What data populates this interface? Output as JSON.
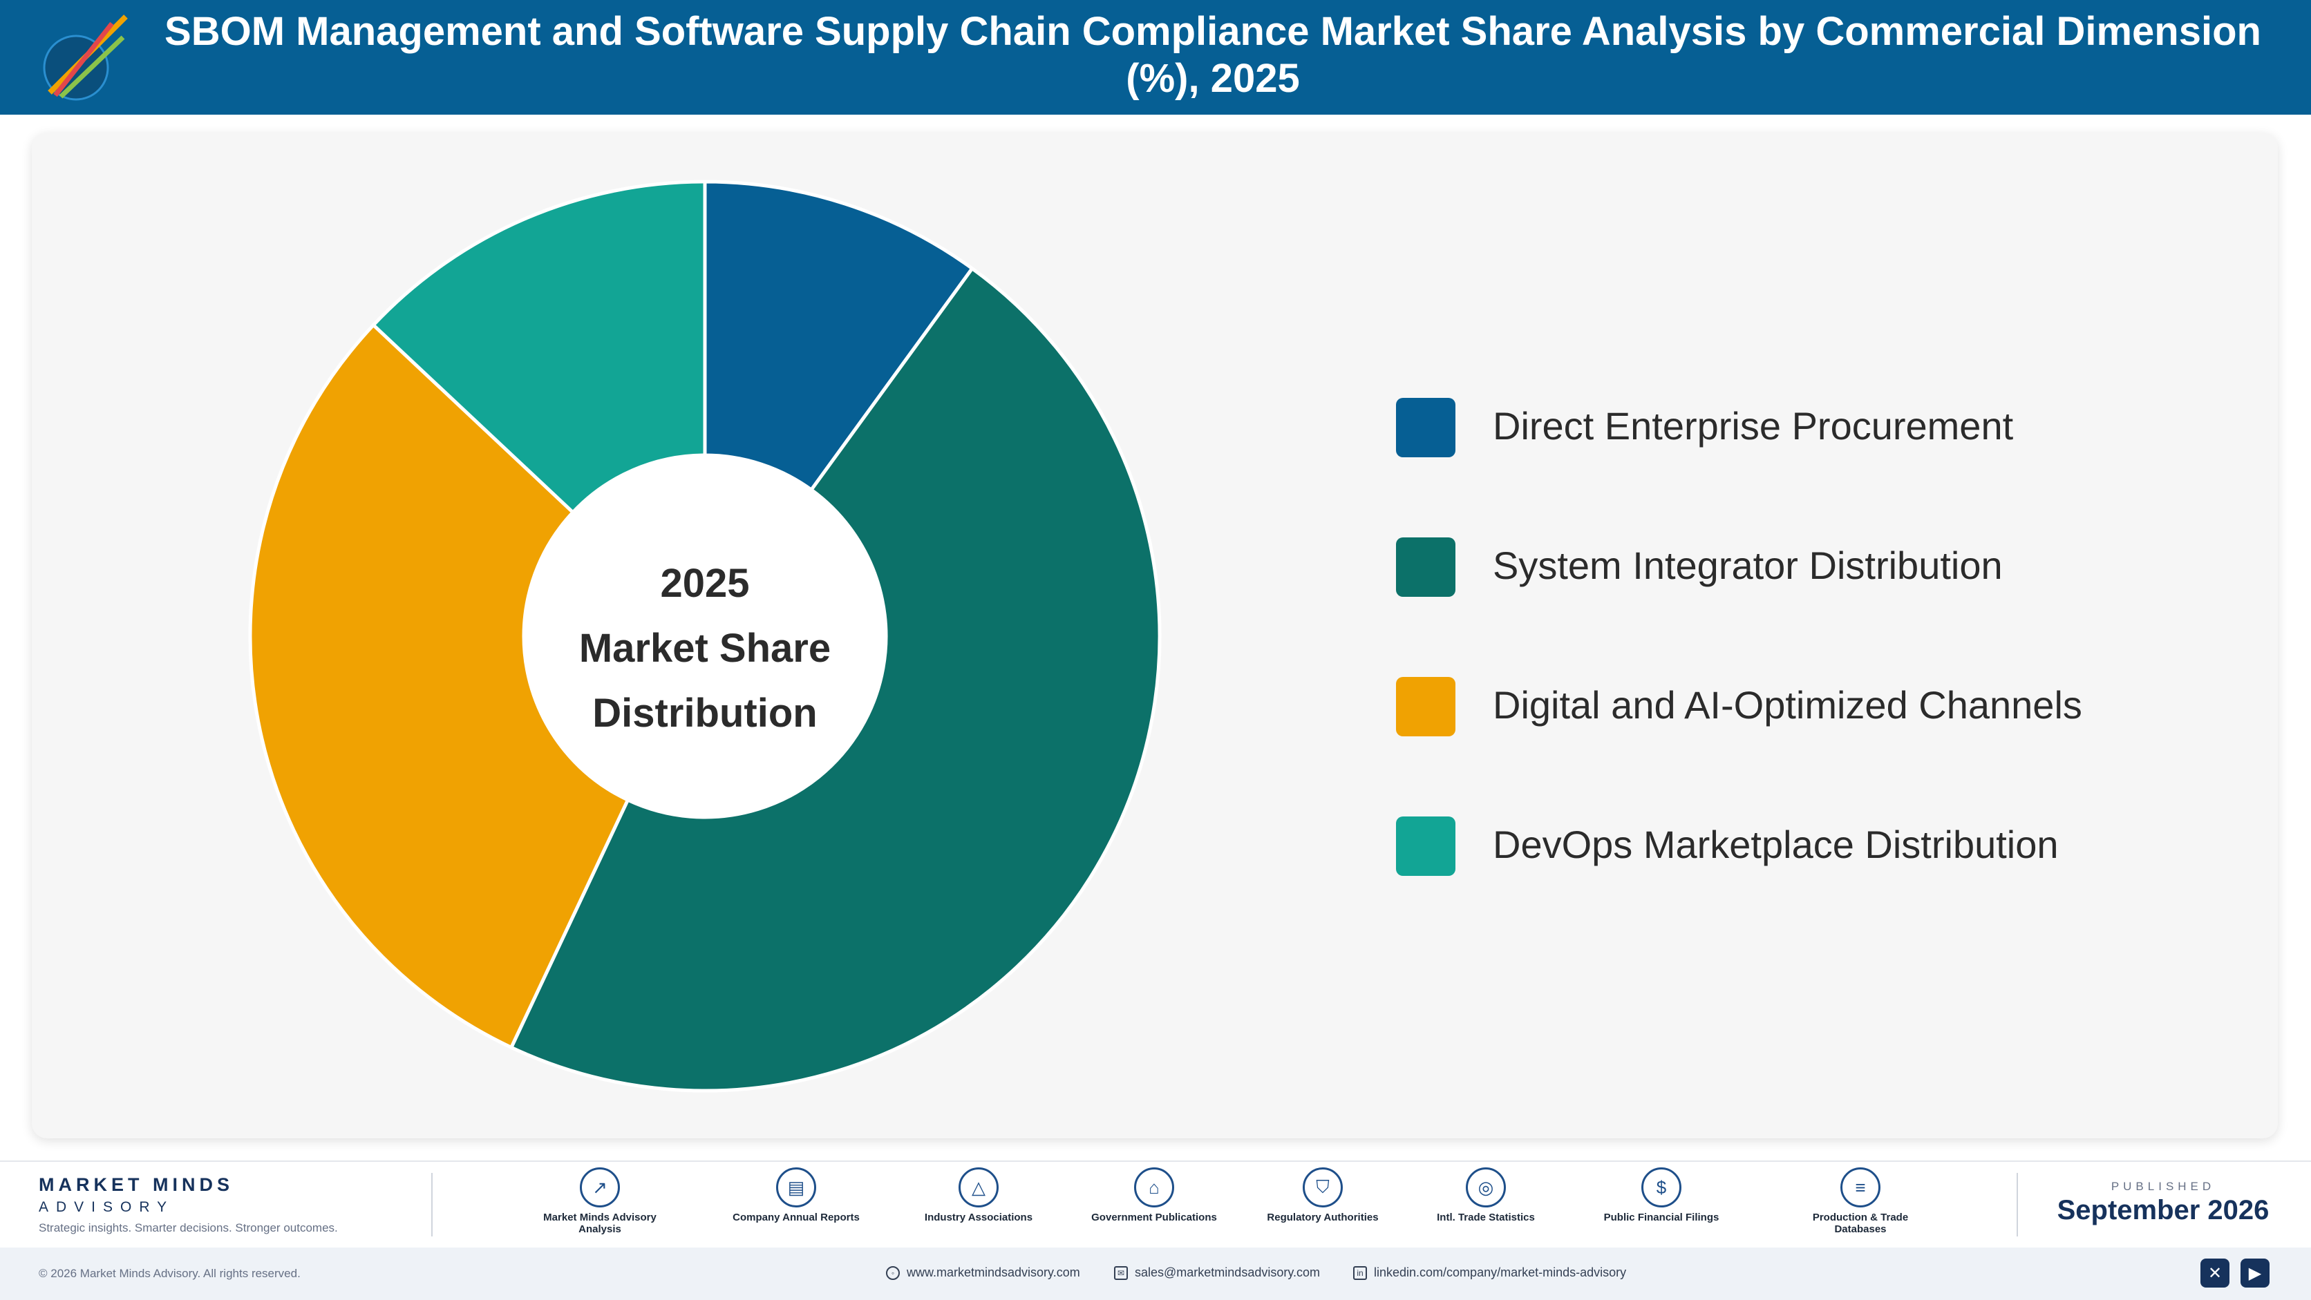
{
  "header": {
    "title": "SBOM Management and Software Supply Chain Compliance Market Share Analysis by Commercial Dimension (%), 2025",
    "logo_icon": "chart-logo-icon"
  },
  "chart_data": {
    "type": "pie",
    "title": "SBOM Management and Software Supply Chain Compliance Market Share Analysis by Commercial Dimension (%), 2025",
    "center_label": [
      "2025",
      "Market Share",
      "Distribution"
    ],
    "categories": [
      "Direct Enterprise Procurement",
      "System Integrator Distribution",
      "Digital and AI-Optimized Channels",
      "DevOps Marketplace Distribution"
    ],
    "values": [
      10,
      47,
      30,
      13
    ],
    "colors": [
      "#065f94",
      "#0c7169",
      "#f0a202",
      "#12a595"
    ],
    "legend_position": "right"
  },
  "footer": {
    "brand": "MARKET MINDS",
    "brand_sub": "ADVISORY",
    "tagline": "Strategic insights. Smarter decisions. Stronger outcomes.",
    "sources": [
      {
        "label": "Market Minds Advisory Analysis",
        "icon": "trend-icon"
      },
      {
        "label": "Company Annual Reports",
        "icon": "document-icon"
      },
      {
        "label": "Industry Associations",
        "icon": "network-icon"
      },
      {
        "label": "Government Publications",
        "icon": "government-icon"
      },
      {
        "label": "Regulatory Authorities",
        "icon": "shield-icon"
      },
      {
        "label": "Intl. Trade Statistics",
        "icon": "globe-icon"
      },
      {
        "label": "Public Financial Filings",
        "icon": "dollar-icon"
      },
      {
        "label": "Production & Trade Databases",
        "icon": "database-icon"
      }
    ],
    "published_label": "PUBLISHED",
    "published_date": "September 2026",
    "copyright": "© 2026 Market Minds Advisory. All rights reserved.",
    "website": "www.marketmindsadvisory.com",
    "email": "sales@marketmindsadvisory.com",
    "linkedin": "linkedin.com/company/market-minds-advisory"
  }
}
